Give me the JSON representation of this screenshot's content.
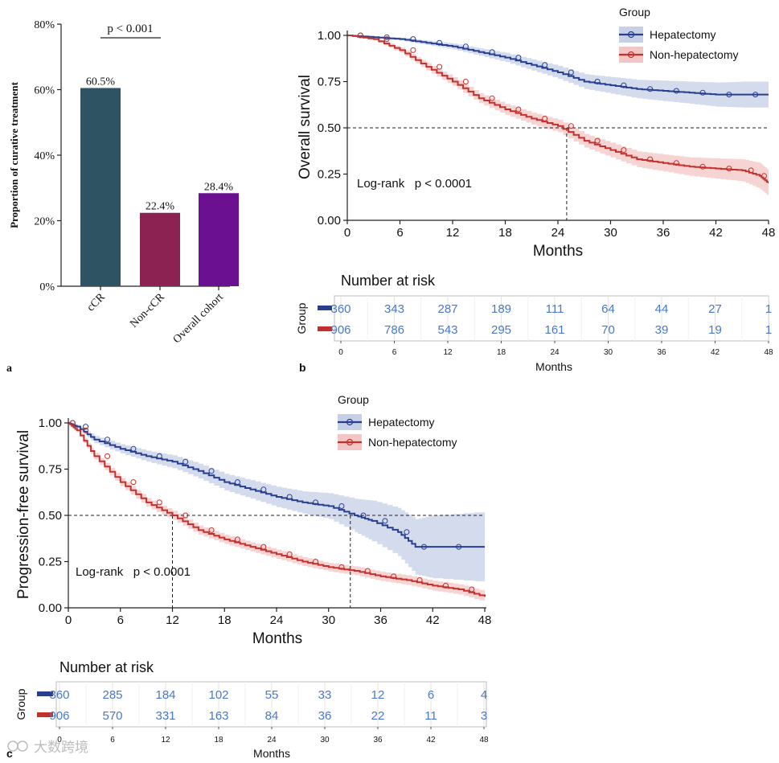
{
  "panel_labels": {
    "a": "a",
    "b": "b",
    "c": "c"
  },
  "watermark": "大数跨境",
  "chart_data": [
    {
      "id": "a",
      "type": "bar",
      "ylabel": "Proportion of curative treatment",
      "ylim": [
        0,
        80
      ],
      "yticks": [
        "0%",
        "20%",
        "40%",
        "60%",
        "80%"
      ],
      "categories": [
        "cCR",
        "Non-cCR",
        "Overall cohort"
      ],
      "values": [
        60.5,
        22.4,
        28.4
      ],
      "value_labels": [
        "60.5%",
        "22.4%",
        "28.4%"
      ],
      "colors": [
        "#2e5464",
        "#8b2252",
        "#6a1090"
      ],
      "annotation": "p < 0.001"
    },
    {
      "id": "b",
      "type": "line",
      "xlabel": "Months",
      "ylabel": "Overall survival",
      "xlim": [
        0,
        48
      ],
      "ylim": [
        0,
        1
      ],
      "xticks": [
        "0",
        "6",
        "12",
        "18",
        "24",
        "30",
        "36",
        "42",
        "48"
      ],
      "yticks": [
        "0.00",
        "0.25",
        "0.50",
        "0.75",
        "1.00"
      ],
      "legend_title": "Group",
      "annotation": "Log-rank   p < 0.0001",
      "median_lines": [
        25
      ],
      "series": [
        {
          "name": "Hepatectomy",
          "color": "#283f8f",
          "band": "#c6cfe6",
          "x": [
            0,
            3,
            6,
            9,
            12,
            15,
            18,
            21,
            24,
            27,
            30,
            33,
            36,
            39,
            42,
            45,
            48
          ],
          "y": [
            1.0,
            0.99,
            0.98,
            0.96,
            0.94,
            0.91,
            0.88,
            0.84,
            0.8,
            0.75,
            0.73,
            0.71,
            0.7,
            0.69,
            0.68,
            0.68,
            0.68
          ],
          "ci_width": [
            0,
            0.004,
            0.008,
            0.012,
            0.016,
            0.02,
            0.025,
            0.03,
            0.035,
            0.04,
            0.045,
            0.05,
            0.055,
            0.06,
            0.065,
            0.07,
            0.07
          ]
        },
        {
          "name": "Non-hepatectomy",
          "color": "#c4312c",
          "band": "#f3c6c6",
          "x": [
            0,
            3,
            6,
            9,
            12,
            15,
            18,
            21,
            24,
            27,
            30,
            33,
            36,
            39,
            42,
            45,
            47,
            48
          ],
          "y": [
            1.0,
            0.98,
            0.92,
            0.83,
            0.75,
            0.66,
            0.6,
            0.55,
            0.51,
            0.43,
            0.38,
            0.33,
            0.31,
            0.29,
            0.28,
            0.27,
            0.24,
            0.2
          ],
          "ci_width": [
            0,
            0.008,
            0.014,
            0.02,
            0.024,
            0.027,
            0.03,
            0.032,
            0.034,
            0.037,
            0.04,
            0.043,
            0.046,
            0.05,
            0.055,
            0.06,
            0.07,
            0.07
          ]
        }
      ],
      "risk_table": {
        "title": "Number at risk",
        "row_label": "Group",
        "xlabel": "Months",
        "times": [
          "0",
          "6",
          "12",
          "18",
          "24",
          "30",
          "36",
          "42",
          "48"
        ],
        "rows": [
          {
            "color": "#283f8f",
            "values": [
              "360",
              "343",
              "287",
              "189",
              "111",
              "64",
              "44",
              "27",
              "1"
            ]
          },
          {
            "color": "#c4312c",
            "values": [
              "906",
              "786",
              "543",
              "295",
              "161",
              "70",
              "39",
              "19",
              "1"
            ]
          }
        ]
      }
    },
    {
      "id": "c",
      "type": "line",
      "xlabel": "Months",
      "ylabel": "Progression-free survival",
      "xlim": [
        0,
        48
      ],
      "ylim": [
        0,
        1
      ],
      "xticks": [
        "0",
        "6",
        "12",
        "18",
        "24",
        "30",
        "36",
        "42",
        "48"
      ],
      "yticks": [
        "0.00",
        "0.25",
        "0.50",
        "0.75",
        "1.00"
      ],
      "legend_title": "Group",
      "annotation": "Log-rank   p < 0.0001",
      "median_lines": [
        12,
        32.5
      ],
      "series": [
        {
          "name": "Hepatectomy",
          "color": "#283f8f",
          "band": "#c6cfe6",
          "x": [
            0,
            1,
            3,
            6,
            9,
            12,
            15,
            18,
            21,
            24,
            27,
            30,
            33,
            35,
            38,
            40,
            42,
            48
          ],
          "y": [
            1.0,
            0.98,
            0.91,
            0.86,
            0.82,
            0.79,
            0.74,
            0.68,
            0.64,
            0.6,
            0.57,
            0.55,
            0.5,
            0.47,
            0.41,
            0.33,
            0.33,
            0.33
          ],
          "ci_width": [
            0,
            0.01,
            0.02,
            0.025,
            0.03,
            0.035,
            0.04,
            0.045,
            0.05,
            0.055,
            0.06,
            0.07,
            0.09,
            0.11,
            0.13,
            0.15,
            0.17,
            0.19
          ]
        },
        {
          "name": "Non-hepatectomy",
          "color": "#c4312c",
          "band": "#f3c6c6",
          "x": [
            0,
            1,
            3,
            6,
            9,
            12,
            15,
            18,
            21,
            24,
            27,
            30,
            33,
            36,
            39,
            42,
            45,
            48
          ],
          "y": [
            1.0,
            0.96,
            0.82,
            0.68,
            0.57,
            0.5,
            0.42,
            0.37,
            0.33,
            0.29,
            0.25,
            0.22,
            0.2,
            0.17,
            0.15,
            0.12,
            0.1,
            0.06
          ],
          "ci_width": [
            0,
            0.01,
            0.018,
            0.022,
            0.024,
            0.025,
            0.025,
            0.025,
            0.025,
            0.025,
            0.024,
            0.023,
            0.024,
            0.025,
            0.026,
            0.027,
            0.028,
            0.028
          ]
        }
      ],
      "risk_table": {
        "title": "Number at risk",
        "row_label": "Group",
        "xlabel": "Months",
        "times": [
          "0",
          "6",
          "12",
          "18",
          "24",
          "30",
          "36",
          "42",
          "48"
        ],
        "rows": [
          {
            "color": "#283f8f",
            "values": [
              "360",
              "285",
              "184",
              "102",
              "55",
              "33",
              "12",
              "6",
              "4"
            ]
          },
          {
            "color": "#c4312c",
            "values": [
              "906",
              "570",
              "331",
              "163",
              "84",
              "36",
              "22",
              "11",
              "3"
            ]
          }
        ]
      }
    }
  ]
}
